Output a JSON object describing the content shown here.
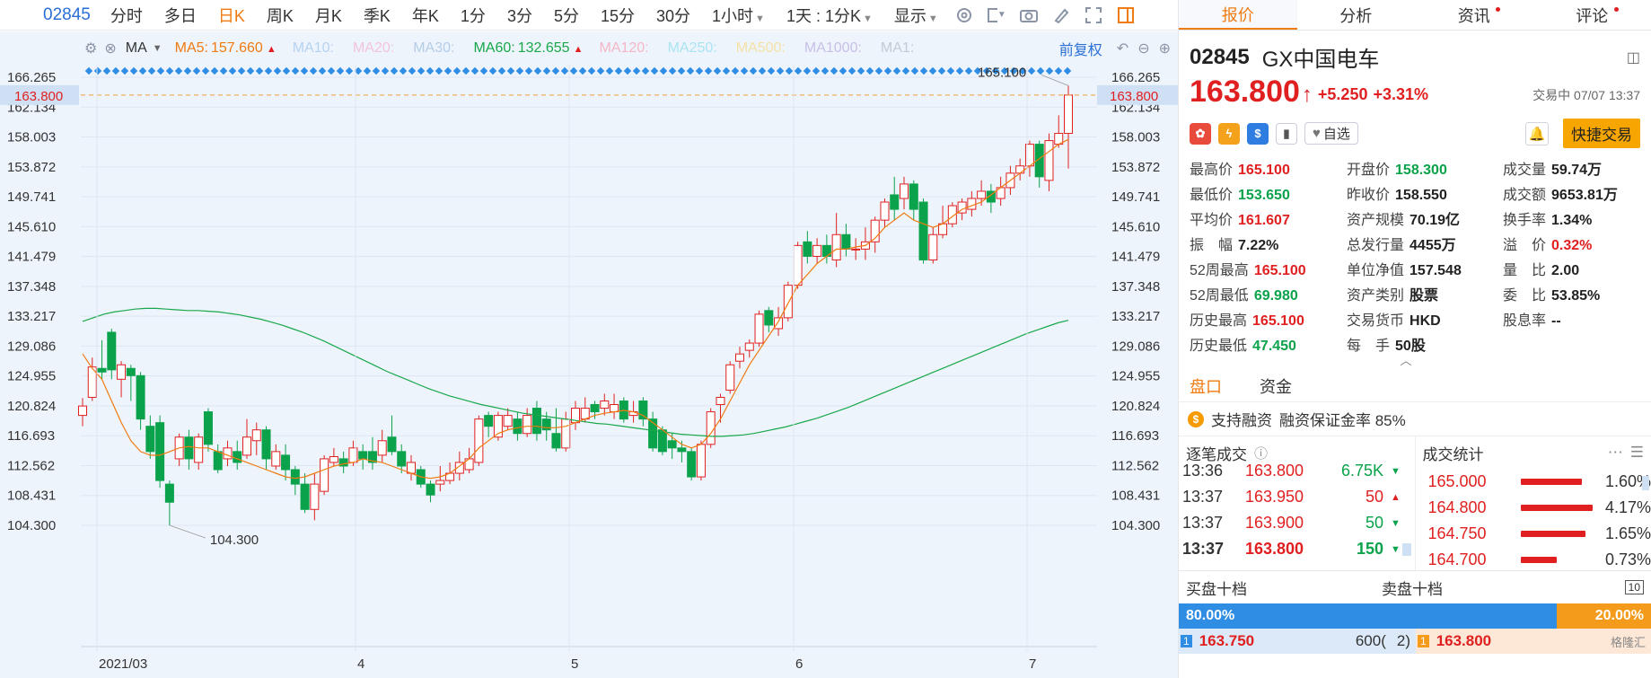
{
  "toolbar": {
    "symbol": "02845",
    "periods": [
      "分时",
      "多日",
      "日K",
      "周K",
      "月K",
      "季K",
      "年K",
      "1分",
      "3分",
      "5分",
      "15分",
      "30分"
    ],
    "active_period": "日K",
    "hour_select": "1小时",
    "range_select": "1天 : 1分K",
    "display_select": "显示"
  },
  "ma_bar": {
    "ma_label": "MA",
    "items": [
      {
        "label": "MA5:",
        "value": "157.660",
        "arrow": "▲",
        "color": "#f07b12"
      },
      {
        "label": "MA10:",
        "value": "",
        "color": "#b4d3f2"
      },
      {
        "label": "MA20:",
        "value": "",
        "color": "#f2c4d9"
      },
      {
        "label": "MA30:",
        "value": "",
        "color": "#b4cde8"
      },
      {
        "label": "MA60:",
        "value": "132.655",
        "arrow": "▲",
        "color": "#18a84a"
      },
      {
        "label": "MA120:",
        "value": "",
        "color": "#f4b6c5"
      },
      {
        "label": "MA250:",
        "value": "",
        "color": "#a9e4f2"
      },
      {
        "label": "MA500:",
        "value": "",
        "color": "#f5e1a6"
      },
      {
        "label": "MA1000:",
        "value": "",
        "color": "#c8bfe8"
      },
      {
        "label": "MA1:",
        "value": "",
        "color": "#c2cad6"
      }
    ],
    "adjust_label": "前复权"
  },
  "chart_data": {
    "type": "candlestick",
    "y_ticks": [
      "166.265",
      "162.134",
      "158.003",
      "153.872",
      "149.741",
      "145.610",
      "141.479",
      "137.348",
      "133.217",
      "129.086",
      "124.955",
      "120.824",
      "116.693",
      "112.562",
      "108.431",
      "104.300"
    ],
    "ylim": [
      104.3,
      166.265
    ],
    "current_price_label": "163.800",
    "x_labels": [
      "2021/03",
      "4",
      "5",
      "6",
      "7"
    ],
    "high_annotation": "165.100",
    "low_annotation": "104.300",
    "candles": [
      {
        "o": 119.5,
        "c": 120.8,
        "h": 121.9,
        "l": 118.0
      },
      {
        "o": 122.0,
        "c": 126.2,
        "h": 127.5,
        "l": 121.5
      },
      {
        "o": 126.0,
        "c": 125.5,
        "h": 129.9,
        "l": 124.5
      },
      {
        "o": 131.0,
        "c": 125.8,
        "h": 131.5,
        "l": 124.5
      },
      {
        "o": 124.5,
        "c": 126.5,
        "h": 127.0,
        "l": 122.0
      },
      {
        "o": 126.0,
        "c": 125.0,
        "h": 126.5,
        "l": 121.5
      },
      {
        "o": 125.0,
        "c": 119.0,
        "h": 125.5,
        "l": 117.5
      },
      {
        "o": 118.0,
        "c": 114.5,
        "h": 119.5,
        "l": 113.5
      },
      {
        "o": 118.5,
        "c": 110.5,
        "h": 119.5,
        "l": 109.5
      },
      {
        "o": 110.0,
        "c": 107.5,
        "h": 110.5,
        "l": 104.3
      },
      {
        "o": 113.5,
        "c": 116.5,
        "h": 117.0,
        "l": 112.5
      },
      {
        "o": 116.5,
        "c": 113.5,
        "h": 117.5,
        "l": 112.0
      },
      {
        "o": 113.0,
        "c": 116.5,
        "h": 117.0,
        "l": 112.0
      },
      {
        "o": 120.0,
        "c": 115.5,
        "h": 120.5,
        "l": 114.5
      },
      {
        "o": 114.5,
        "c": 112.0,
        "h": 115.5,
        "l": 111.5
      },
      {
        "o": 113.5,
        "c": 115.0,
        "h": 116.0,
        "l": 112.5
      },
      {
        "o": 114.5,
        "c": 113.0,
        "h": 116.0,
        "l": 112.0
      },
      {
        "o": 114.0,
        "c": 116.5,
        "h": 119.0,
        "l": 113.5
      },
      {
        "o": 116.0,
        "c": 117.5,
        "h": 118.5,
        "l": 114.0
      },
      {
        "o": 117.5,
        "c": 113.5,
        "h": 118.0,
        "l": 112.0
      },
      {
        "o": 112.5,
        "c": 114.5,
        "h": 115.5,
        "l": 112.0
      },
      {
        "o": 114.0,
        "c": 112.0,
        "h": 115.5,
        "l": 110.5
      },
      {
        "o": 112.0,
        "c": 110.0,
        "h": 112.5,
        "l": 108.5
      },
      {
        "o": 110.0,
        "c": 106.5,
        "h": 111.5,
        "l": 106.0
      },
      {
        "o": 106.5,
        "c": 110.0,
        "h": 111.5,
        "l": 105.0
      },
      {
        "o": 109.0,
        "c": 113.5,
        "h": 114.0,
        "l": 108.5
      },
      {
        "o": 113.0,
        "c": 113.8,
        "h": 115.0,
        "l": 112.5
      },
      {
        "o": 113.5,
        "c": 112.5,
        "h": 114.5,
        "l": 111.5
      },
      {
        "o": 113.0,
        "c": 115.0,
        "h": 116.0,
        "l": 112.5
      },
      {
        "o": 114.5,
        "c": 113.5,
        "h": 115.5,
        "l": 112.0
      },
      {
        "o": 114.5,
        "c": 113.0,
        "h": 116.5,
        "l": 112.0
      },
      {
        "o": 114.0,
        "c": 116.0,
        "h": 117.5,
        "l": 113.0
      },
      {
        "o": 116.5,
        "c": 114.5,
        "h": 119.5,
        "l": 114.0
      },
      {
        "o": 114.5,
        "c": 112.5,
        "h": 115.5,
        "l": 111.5
      },
      {
        "o": 111.5,
        "c": 113.0,
        "h": 114.0,
        "l": 110.5
      },
      {
        "o": 112.0,
        "c": 110.0,
        "h": 112.5,
        "l": 109.5
      },
      {
        "o": 110.0,
        "c": 108.5,
        "h": 110.5,
        "l": 107.5
      },
      {
        "o": 110.0,
        "c": 110.5,
        "h": 112.5,
        "l": 109.0
      },
      {
        "o": 110.5,
        "c": 111.5,
        "h": 113.0,
        "l": 110.0
      },
      {
        "o": 111.5,
        "c": 113.0,
        "h": 114.5,
        "l": 110.5
      },
      {
        "o": 112.0,
        "c": 113.5,
        "h": 115.0,
        "l": 111.5
      },
      {
        "o": 113.0,
        "c": 119.0,
        "h": 119.5,
        "l": 112.5
      },
      {
        "o": 119.5,
        "c": 118.0,
        "h": 120.0,
        "l": 116.5
      },
      {
        "o": 116.5,
        "c": 119.5,
        "h": 120.0,
        "l": 116.0
      },
      {
        "o": 118.0,
        "c": 119.5,
        "h": 120.5,
        "l": 117.5
      },
      {
        "o": 119.0,
        "c": 117.0,
        "h": 120.0,
        "l": 116.0
      },
      {
        "o": 117.0,
        "c": 119.5,
        "h": 120.5,
        "l": 116.5
      },
      {
        "o": 120.5,
        "c": 117.0,
        "h": 121.5,
        "l": 116.0
      },
      {
        "o": 119.0,
        "c": 117.5,
        "h": 120.0,
        "l": 116.0
      },
      {
        "o": 117.0,
        "c": 115.0,
        "h": 120.5,
        "l": 114.5
      },
      {
        "o": 115.0,
        "c": 119.0,
        "h": 120.0,
        "l": 114.5
      },
      {
        "o": 118.5,
        "c": 120.5,
        "h": 121.5,
        "l": 117.5
      },
      {
        "o": 119.0,
        "c": 120.5,
        "h": 122.0,
        "l": 118.5
      },
      {
        "o": 121.0,
        "c": 120.0,
        "h": 121.5,
        "l": 119.0
      },
      {
        "o": 120.5,
        "c": 121.5,
        "h": 122.5,
        "l": 119.5
      },
      {
        "o": 120.0,
        "c": 121.0,
        "h": 122.5,
        "l": 119.0
      },
      {
        "o": 121.5,
        "c": 119.0,
        "h": 122.0,
        "l": 118.5
      },
      {
        "o": 119.5,
        "c": 120.0,
        "h": 121.5,
        "l": 118.5
      },
      {
        "o": 121.5,
        "c": 119.0,
        "h": 122.0,
        "l": 118.0
      },
      {
        "o": 119.0,
        "c": 115.0,
        "h": 120.0,
        "l": 114.5
      },
      {
        "o": 117.5,
        "c": 114.5,
        "h": 118.0,
        "l": 114.0
      },
      {
        "o": 116.0,
        "c": 115.0,
        "h": 117.0,
        "l": 113.5
      },
      {
        "o": 115.0,
        "c": 114.5,
        "h": 116.0,
        "l": 113.0
      },
      {
        "o": 114.5,
        "c": 111.0,
        "h": 115.0,
        "l": 110.5
      },
      {
        "o": 111.0,
        "c": 115.5,
        "h": 116.0,
        "l": 110.5
      },
      {
        "o": 115.5,
        "c": 120.0,
        "h": 120.5,
        "l": 115.0
      },
      {
        "o": 121.0,
        "c": 122.0,
        "h": 122.5,
        "l": 118.5
      },
      {
        "o": 123.0,
        "c": 126.5,
        "h": 127.0,
        "l": 122.5
      },
      {
        "o": 127.0,
        "c": 128.0,
        "h": 129.0,
        "l": 126.0
      },
      {
        "o": 128.5,
        "c": 129.5,
        "h": 130.0,
        "l": 127.5
      },
      {
        "o": 129.5,
        "c": 133.5,
        "h": 134.0,
        "l": 129.0
      },
      {
        "o": 134.0,
        "c": 132.0,
        "h": 134.5,
        "l": 131.0
      },
      {
        "o": 131.5,
        "c": 133.0,
        "h": 134.5,
        "l": 130.5
      },
      {
        "o": 133.0,
        "c": 137.5,
        "h": 138.0,
        "l": 132.5
      },
      {
        "o": 137.5,
        "c": 143.0,
        "h": 143.5,
        "l": 137.0
      },
      {
        "o": 143.5,
        "c": 141.5,
        "h": 145.0,
        "l": 140.5
      },
      {
        "o": 141.5,
        "c": 143.0,
        "h": 144.0,
        "l": 140.5
      },
      {
        "o": 143.0,
        "c": 141.5,
        "h": 144.5,
        "l": 140.5
      },
      {
        "o": 141.0,
        "c": 144.5,
        "h": 147.5,
        "l": 140.0
      },
      {
        "o": 144.5,
        "c": 142.5,
        "h": 146.0,
        "l": 141.5
      },
      {
        "o": 142.5,
        "c": 142.5,
        "h": 144.0,
        "l": 141.0
      },
      {
        "o": 142.5,
        "c": 143.5,
        "h": 145.5,
        "l": 141.0
      },
      {
        "o": 143.5,
        "c": 146.5,
        "h": 147.0,
        "l": 142.0
      },
      {
        "o": 146.5,
        "c": 149.0,
        "h": 149.5,
        "l": 145.5
      },
      {
        "o": 150.0,
        "c": 148.0,
        "h": 152.5,
        "l": 146.5
      },
      {
        "o": 149.5,
        "c": 151.5,
        "h": 152.5,
        "l": 148.0
      },
      {
        "o": 151.5,
        "c": 148.0,
        "h": 152.0,
        "l": 146.5
      },
      {
        "o": 149.0,
        "c": 141.0,
        "h": 149.5,
        "l": 140.5
      },
      {
        "o": 141.0,
        "c": 144.5,
        "h": 145.5,
        "l": 140.5
      },
      {
        "o": 144.5,
        "c": 146.0,
        "h": 148.5,
        "l": 144.0
      },
      {
        "o": 146.0,
        "c": 148.5,
        "h": 149.0,
        "l": 145.5
      },
      {
        "o": 147.5,
        "c": 149.0,
        "h": 149.5,
        "l": 146.5
      },
      {
        "o": 148.0,
        "c": 149.5,
        "h": 150.5,
        "l": 147.0
      },
      {
        "o": 149.5,
        "c": 150.5,
        "h": 152.0,
        "l": 148.5
      },
      {
        "o": 150.5,
        "c": 149.0,
        "h": 151.5,
        "l": 147.5
      },
      {
        "o": 149.5,
        "c": 151.0,
        "h": 152.5,
        "l": 148.5
      },
      {
        "o": 151.0,
        "c": 153.0,
        "h": 154.0,
        "l": 150.0
      },
      {
        "o": 153.0,
        "c": 154.0,
        "h": 155.0,
        "l": 152.0
      },
      {
        "o": 154.0,
        "c": 157.0,
        "h": 157.5,
        "l": 152.5
      },
      {
        "o": 157.0,
        "c": 152.5,
        "h": 157.5,
        "l": 151.0
      },
      {
        "o": 152.0,
        "c": 157.5,
        "h": 158.5,
        "l": 150.5
      },
      {
        "o": 157.0,
        "c": 158.5,
        "h": 161.0,
        "l": 156.5
      },
      {
        "o": 158.5,
        "c": 163.8,
        "h": 165.1,
        "l": 153.65
      }
    ],
    "ma5": [
      128.0,
      126.0,
      124.5,
      121.5,
      118.5,
      116.0,
      114.5,
      114.0,
      114.0,
      114.5,
      115.0,
      115.2,
      115.0,
      115.0,
      114.5,
      114.0,
      113.5,
      113.0,
      112.5,
      112.0,
      111.5,
      111.0,
      110.8,
      111.0,
      111.5,
      112.0,
      112.5,
      112.8,
      113.0,
      113.5,
      113.2,
      113.0,
      112.5,
      112.0,
      111.5,
      111.0,
      110.8,
      111.0,
      111.5,
      112.5,
      113.5,
      115.0,
      116.0,
      117.0,
      117.5,
      117.8,
      118.0,
      118.0,
      117.8,
      117.8,
      118.0,
      118.5,
      119.0,
      119.5,
      119.8,
      120.0,
      120.2,
      120.0,
      119.5,
      118.5,
      117.5,
      116.5,
      115.5,
      115.0,
      115.5,
      117.0,
      119.0,
      121.5,
      124.0,
      126.5,
      128.5,
      130.5,
      132.5,
      135.0,
      137.5,
      139.0,
      140.5,
      141.5,
      142.5,
      142.5,
      142.8,
      143.0,
      144.0,
      145.5,
      146.5,
      147.5,
      146.5,
      146.0,
      145.5,
      146.0,
      147.0,
      148.0,
      148.5,
      149.0,
      150.0,
      151.0,
      152.0,
      153.0,
      154.0,
      155.0,
      156.0,
      157.0,
      157.66
    ],
    "ma60": [
      132.5,
      133.0,
      133.5,
      133.8,
      134.0,
      134.2,
      134.3,
      134.3,
      134.2,
      134.1,
      134.0,
      134.0,
      133.9,
      133.8,
      133.6,
      133.4,
      133.1,
      132.8,
      132.4,
      132.0,
      131.5,
      131.0,
      130.4,
      129.8,
      129.1,
      128.4,
      127.7,
      127.0,
      126.3,
      125.6,
      125.0,
      124.4,
      123.8,
      123.2,
      122.7,
      122.2,
      121.8,
      121.4,
      121.0,
      120.7,
      120.4,
      120.1,
      119.8,
      119.6,
      119.4,
      119.2,
      119.0,
      118.8,
      118.6,
      118.4,
      118.3,
      118.1,
      117.9,
      117.7,
      117.5,
      117.3,
      117.1,
      116.9,
      116.8,
      116.7,
      116.6,
      116.6,
      116.7,
      116.8,
      117.0,
      117.3,
      117.6,
      117.9,
      118.3,
      118.7,
      119.1,
      119.6,
      120.1,
      120.6,
      121.2,
      121.8,
      122.4,
      123.0,
      123.6,
      124.2,
      124.8,
      125.4,
      126.0,
      126.6,
      127.2,
      127.8,
      128.4,
      129.0,
      129.6,
      130.2,
      130.8,
      131.3,
      131.8,
      132.3,
      132.655
    ]
  },
  "quote_panel": {
    "tabs": [
      {
        "label": "报价",
        "dot": false
      },
      {
        "label": "分析",
        "dot": false
      },
      {
        "label": "资讯",
        "dot": true
      },
      {
        "label": "评论",
        "dot": true
      }
    ],
    "code": "02845",
    "name": "GX中国电车",
    "price": "163.800",
    "arrow": "↑",
    "change": "+5.250",
    "change_pct": "+3.31%",
    "status_time": "交易中 07/07 13:37",
    "fav_label": "自选",
    "trade_label": "快捷交易",
    "stats": [
      {
        "label": "最高价",
        "value": "165.100",
        "color": "red"
      },
      {
        "label": "开盘价",
        "value": "158.300",
        "color": "green"
      },
      {
        "label": "成交量",
        "value": "59.74万",
        "color": "blk"
      },
      {
        "label": "最低价",
        "value": "153.650",
        "color": "green"
      },
      {
        "label": "昨收价",
        "value": "158.550",
        "color": "blk"
      },
      {
        "label": "成交额",
        "value": "9653.81万",
        "color": "blk"
      },
      {
        "label": "平均价",
        "value": "161.607",
        "color": "red"
      },
      {
        "label": "资产规模",
        "value": "70.19亿",
        "color": "blk"
      },
      {
        "label": "换手率",
        "value": "1.34%",
        "color": "blk"
      },
      {
        "label": "振　幅",
        "value": "7.22%",
        "color": "blk"
      },
      {
        "label": "总发行量",
        "value": "4455万",
        "color": "blk"
      },
      {
        "label": "溢　价",
        "value": "0.32%",
        "color": "red"
      },
      {
        "label": "52周最高",
        "value": "165.100",
        "color": "red"
      },
      {
        "label": "单位净值",
        "value": "157.548",
        "color": "blk"
      },
      {
        "label": "量　比",
        "value": "2.00",
        "color": "blk"
      },
      {
        "label": "52周最低",
        "value": "69.980",
        "color": "green"
      },
      {
        "label": "资产类别",
        "value": "股票",
        "color": "blk"
      },
      {
        "label": "委　比",
        "value": "53.85%",
        "color": "blk"
      },
      {
        "label": "历史最高",
        "value": "165.100",
        "color": "red"
      },
      {
        "label": "交易货币",
        "value": "HKD",
        "color": "blk"
      },
      {
        "label": "股息率",
        "value": "--",
        "color": "blk"
      },
      {
        "label": "历史最低",
        "value": "47.450",
        "color": "green"
      },
      {
        "label": "每　手",
        "value": "50股",
        "color": "blk"
      }
    ],
    "sub_tabs": [
      "盘口",
      "资金"
    ],
    "margin_text": "支持融资",
    "margin_rate": "融资保证金率 85%",
    "ticks_title": "逐笔成交",
    "ticks": [
      {
        "time": "13:36",
        "price": "163.800",
        "vol": "6.75K",
        "dir": "down"
      },
      {
        "time": "13:37",
        "price": "163.950",
        "vol": "50",
        "dir": "up"
      },
      {
        "time": "13:37",
        "price": "163.900",
        "vol": "50",
        "dir": "down"
      },
      {
        "time": "13:37",
        "price": "163.800",
        "vol": "150",
        "dir": "down"
      }
    ],
    "stats_title": "成交统计",
    "deal_stats": [
      {
        "price": "165.000",
        "pct": "1.60%",
        "fill": 0.85
      },
      {
        "price": "164.800",
        "pct": "4.17%",
        "fill": 1.0
      },
      {
        "price": "164.750",
        "pct": "1.65%",
        "fill": 0.9
      },
      {
        "price": "164.700",
        "pct": "0.73%",
        "fill": 0.5
      }
    ],
    "bid_title": "买盘十档",
    "ask_title": "卖盘十档",
    "bid_ratio": "80.00%",
    "ask_ratio": "20.00%",
    "bid_fill": 0.8,
    "book": {
      "bid_level": "1",
      "bid_price": "163.750",
      "bid_vol": "600(",
      "bid_orders": "2)",
      "ask_level": "1",
      "ask_price": "163.800"
    },
    "watermark": "格隆汇"
  }
}
